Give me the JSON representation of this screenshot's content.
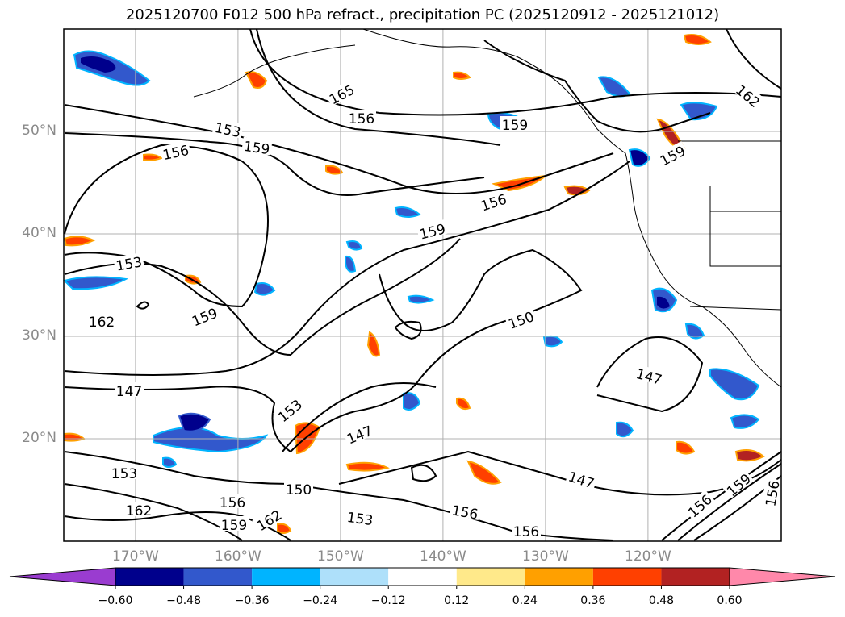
{
  "title": "2025120700 F012 500 hPa refract., precipitation PC (2025120912 - 2025121012)",
  "axes": {
    "lon_labels": [
      "170°W",
      "160°W",
      "150°W",
      "140°W",
      "130°W",
      "120°W"
    ],
    "lat_labels": [
      "50°N",
      "40°N",
      "30°N",
      "20°N"
    ],
    "lon_range": [
      -177,
      -107
    ],
    "lat_range": [
      10,
      60
    ],
    "grid": true,
    "label_color": "#8a8a8a"
  },
  "contour_labels": [
    "165",
    "156",
    "153",
    "159",
    "156",
    "159",
    "162",
    "159",
    "156",
    "159",
    "153",
    "162",
    "159",
    "150",
    "147",
    "153",
    "147",
    "150",
    "147",
    "153",
    "156",
    "162",
    "159",
    "162",
    "156",
    "153",
    "156",
    "156",
    "159",
    "156",
    "147"
  ],
  "colorbar": {
    "ticks": [
      "−0.60",
      "−0.48",
      "−0.36",
      "−0.24",
      "−0.12",
      "0.12",
      "0.24",
      "0.36",
      "0.48",
      "0.60"
    ],
    "colors": [
      "#9a3cd0",
      "#00008c",
      "#3258cc",
      "#00b4ff",
      "#aee0fa",
      "#ffffff",
      "#ffe98a",
      "#ffa000",
      "#ff4000",
      "#b22222",
      "#ff88aa"
    ],
    "extend": "both"
  }
}
